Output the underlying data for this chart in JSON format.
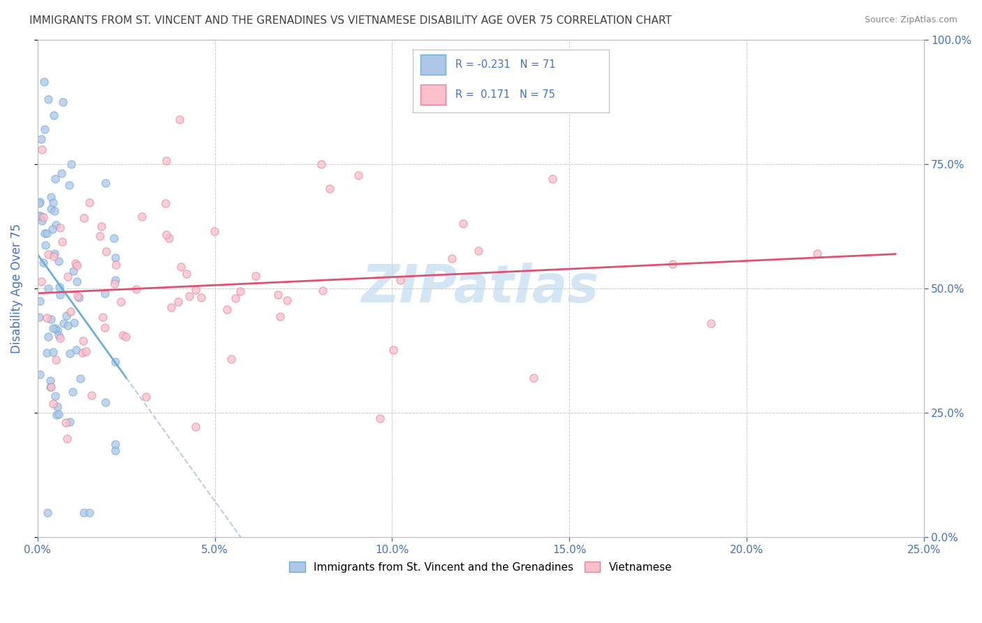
{
  "title": "IMMIGRANTS FROM ST. VINCENT AND THE GRENADINES VS VIETNAMESE DISABILITY AGE OVER 75 CORRELATION CHART",
  "source": "Source: ZipAtlas.com",
  "ylabel": "Disability Age Over 75",
  "xlim": [
    0.0,
    0.25
  ],
  "ylim": [
    0.0,
    1.0
  ],
  "xticks": [
    0.0,
    0.05,
    0.1,
    0.15,
    0.2,
    0.25
  ],
  "yticks": [
    0.0,
    0.25,
    0.5,
    0.75,
    1.0
  ],
  "xticklabels": [
    "0.0%",
    "5.0%",
    "10.0%",
    "15.0%",
    "20.0%",
    "25.0%"
  ],
  "yticklabels": [
    "0.0%",
    "25.0%",
    "50.0%",
    "75.0%",
    "100.0%"
  ],
  "series1_name": "Immigrants from St. Vincent and the Grenadines",
  "series1_R": -0.231,
  "series1_N": 71,
  "series1_color": "#aec6e8",
  "series1_edge_color": "#6baed6",
  "series2_name": "Vietnamese",
  "series2_R": 0.171,
  "series2_N": 75,
  "series2_color": "#f9c0cb",
  "series2_edge_color": "#e8809a",
  "watermark": "ZIPatlas",
  "watermark_color": "#b8d4ee",
  "background_color": "#ffffff",
  "grid_color": "#cccccc",
  "title_color": "#404040",
  "axis_label_color": "#4472c4",
  "legend_R_color": "#4472c4",
  "legend_N_color": "#404040"
}
